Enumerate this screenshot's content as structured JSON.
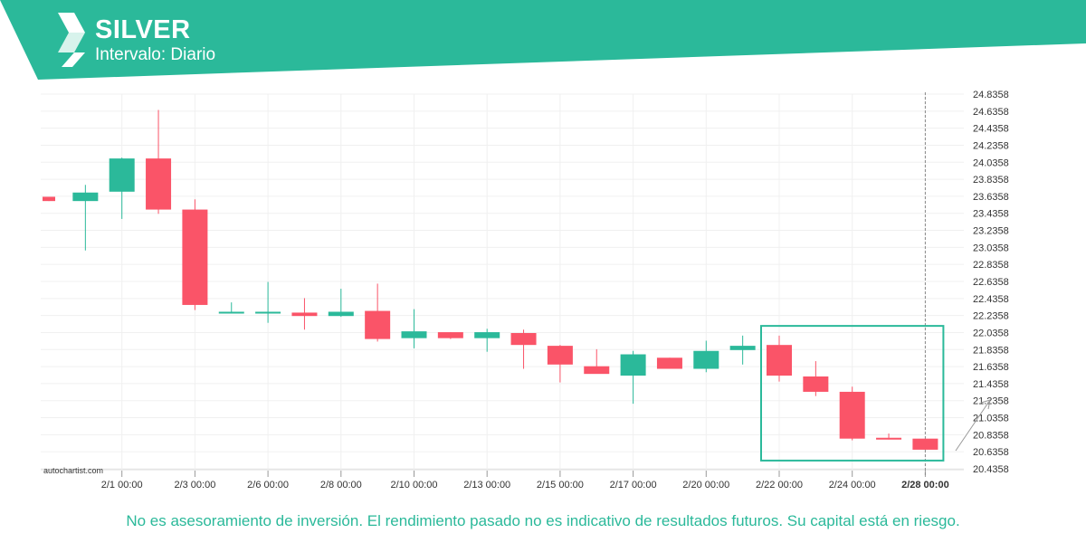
{
  "header": {
    "symbol": "SILVER",
    "interval_label": "Intervalo: Diario",
    "logo_icon": "autochartist-logo-icon",
    "brand_color": "#2bb99a"
  },
  "footer": {
    "disclaimer": "No es asesoramiento de inversión. El rendimiento pasado no es indicativo de resultados futuros. Su capital está en riesgo."
  },
  "watermark": "autochartist.com",
  "colors": {
    "up": "#2bb99a",
    "down": "#fa5468",
    "grid": "#f0f0f0",
    "axis_text": "#333333"
  },
  "chart_data": {
    "type": "candlestick",
    "y_ticks": [
      "24.8358",
      "24.6358",
      "24.4358",
      "24.2358",
      "24.0358",
      "23.8358",
      "23.6358",
      "23.4358",
      "23.2358",
      "23.0358",
      "22.8358",
      "22.6358",
      "22.4358",
      "22.2358",
      "22.0358",
      "21.8358",
      "21.6358",
      "21.4358",
      "21.2358",
      "21.0358",
      "20.8358",
      "20.6358",
      "20.4358"
    ],
    "ylim": [
      20.4358,
      24.8358
    ],
    "x_ticks": [
      {
        "label": "2/1 00:00",
        "index": 2
      },
      {
        "label": "2/3 00:00",
        "index": 4
      },
      {
        "label": "2/6 00:00",
        "index": 6
      },
      {
        "label": "2/8 00:00",
        "index": 8
      },
      {
        "label": "2/10 00:00",
        "index": 10
      },
      {
        "label": "2/13 00:00",
        "index": 12
      },
      {
        "label": "2/15 00:00",
        "index": 14
      },
      {
        "label": "2/17 00:00",
        "index": 16
      },
      {
        "label": "2/20 00:00",
        "index": 18
      },
      {
        "label": "2/22 00:00",
        "index": 20
      },
      {
        "label": "2/24 00:00",
        "index": 22
      },
      {
        "label": "2/28 00:00",
        "index": 24,
        "bold": true
      }
    ],
    "candles": [
      {
        "o": 23.63,
        "h": 23.63,
        "l": 23.58,
        "c": 23.58
      },
      {
        "o": 23.58,
        "h": 23.77,
        "l": 23.0,
        "c": 23.68
      },
      {
        "o": 23.69,
        "h": 24.09,
        "l": 23.37,
        "c": 24.08
      },
      {
        "o": 24.08,
        "h": 24.65,
        "l": 23.43,
        "c": 23.48
      },
      {
        "o": 23.48,
        "h": 23.6,
        "l": 22.3,
        "c": 22.36
      },
      {
        "o": 22.26,
        "h": 22.39,
        "l": 22.26,
        "c": 22.28
      },
      {
        "o": 22.28,
        "h": 22.63,
        "l": 22.15,
        "c": 22.28
      },
      {
        "o": 22.27,
        "h": 22.44,
        "l": 22.07,
        "c": 22.23
      },
      {
        "o": 22.23,
        "h": 22.55,
        "l": 22.22,
        "c": 22.28
      },
      {
        "o": 22.29,
        "h": 22.61,
        "l": 21.93,
        "c": 21.96
      },
      {
        "o": 21.97,
        "h": 22.31,
        "l": 21.85,
        "c": 22.05
      },
      {
        "o": 22.04,
        "h": 22.04,
        "l": 21.96,
        "c": 21.97
      },
      {
        "o": 21.97,
        "h": 22.08,
        "l": 21.81,
        "c": 22.04
      },
      {
        "o": 22.03,
        "h": 22.07,
        "l": 21.61,
        "c": 21.89
      },
      {
        "o": 21.88,
        "h": 21.89,
        "l": 21.45,
        "c": 21.66
      },
      {
        "o": 21.64,
        "h": 21.84,
        "l": 21.56,
        "c": 21.55
      },
      {
        "o": 21.53,
        "h": 21.82,
        "l": 21.2,
        "c": 21.78
      },
      {
        "o": 21.74,
        "h": 21.74,
        "l": 21.61,
        "c": 21.61
      },
      {
        "o": 21.61,
        "h": 21.94,
        "l": 21.57,
        "c": 21.82
      },
      {
        "o": 21.83,
        "h": 22.0,
        "l": 21.66,
        "c": 21.88
      },
      {
        "o": 21.89,
        "h": 22.0,
        "l": 21.46,
        "c": 21.53
      },
      {
        "o": 21.52,
        "h": 21.7,
        "l": 21.29,
        "c": 21.34
      },
      {
        "o": 21.34,
        "h": 21.4,
        "l": 20.77,
        "c": 20.79
      },
      {
        "o": 20.8,
        "h": 20.85,
        "l": 20.78,
        "c": 20.79
      },
      {
        "o": 20.79,
        "h": 20.79,
        "l": 20.66,
        "c": 20.66
      }
    ],
    "highlight_range": {
      "from_index": 20,
      "to_index": 24,
      "price_low": 20.66,
      "price_high": 22.05
    },
    "current_marker_index": 24
  }
}
